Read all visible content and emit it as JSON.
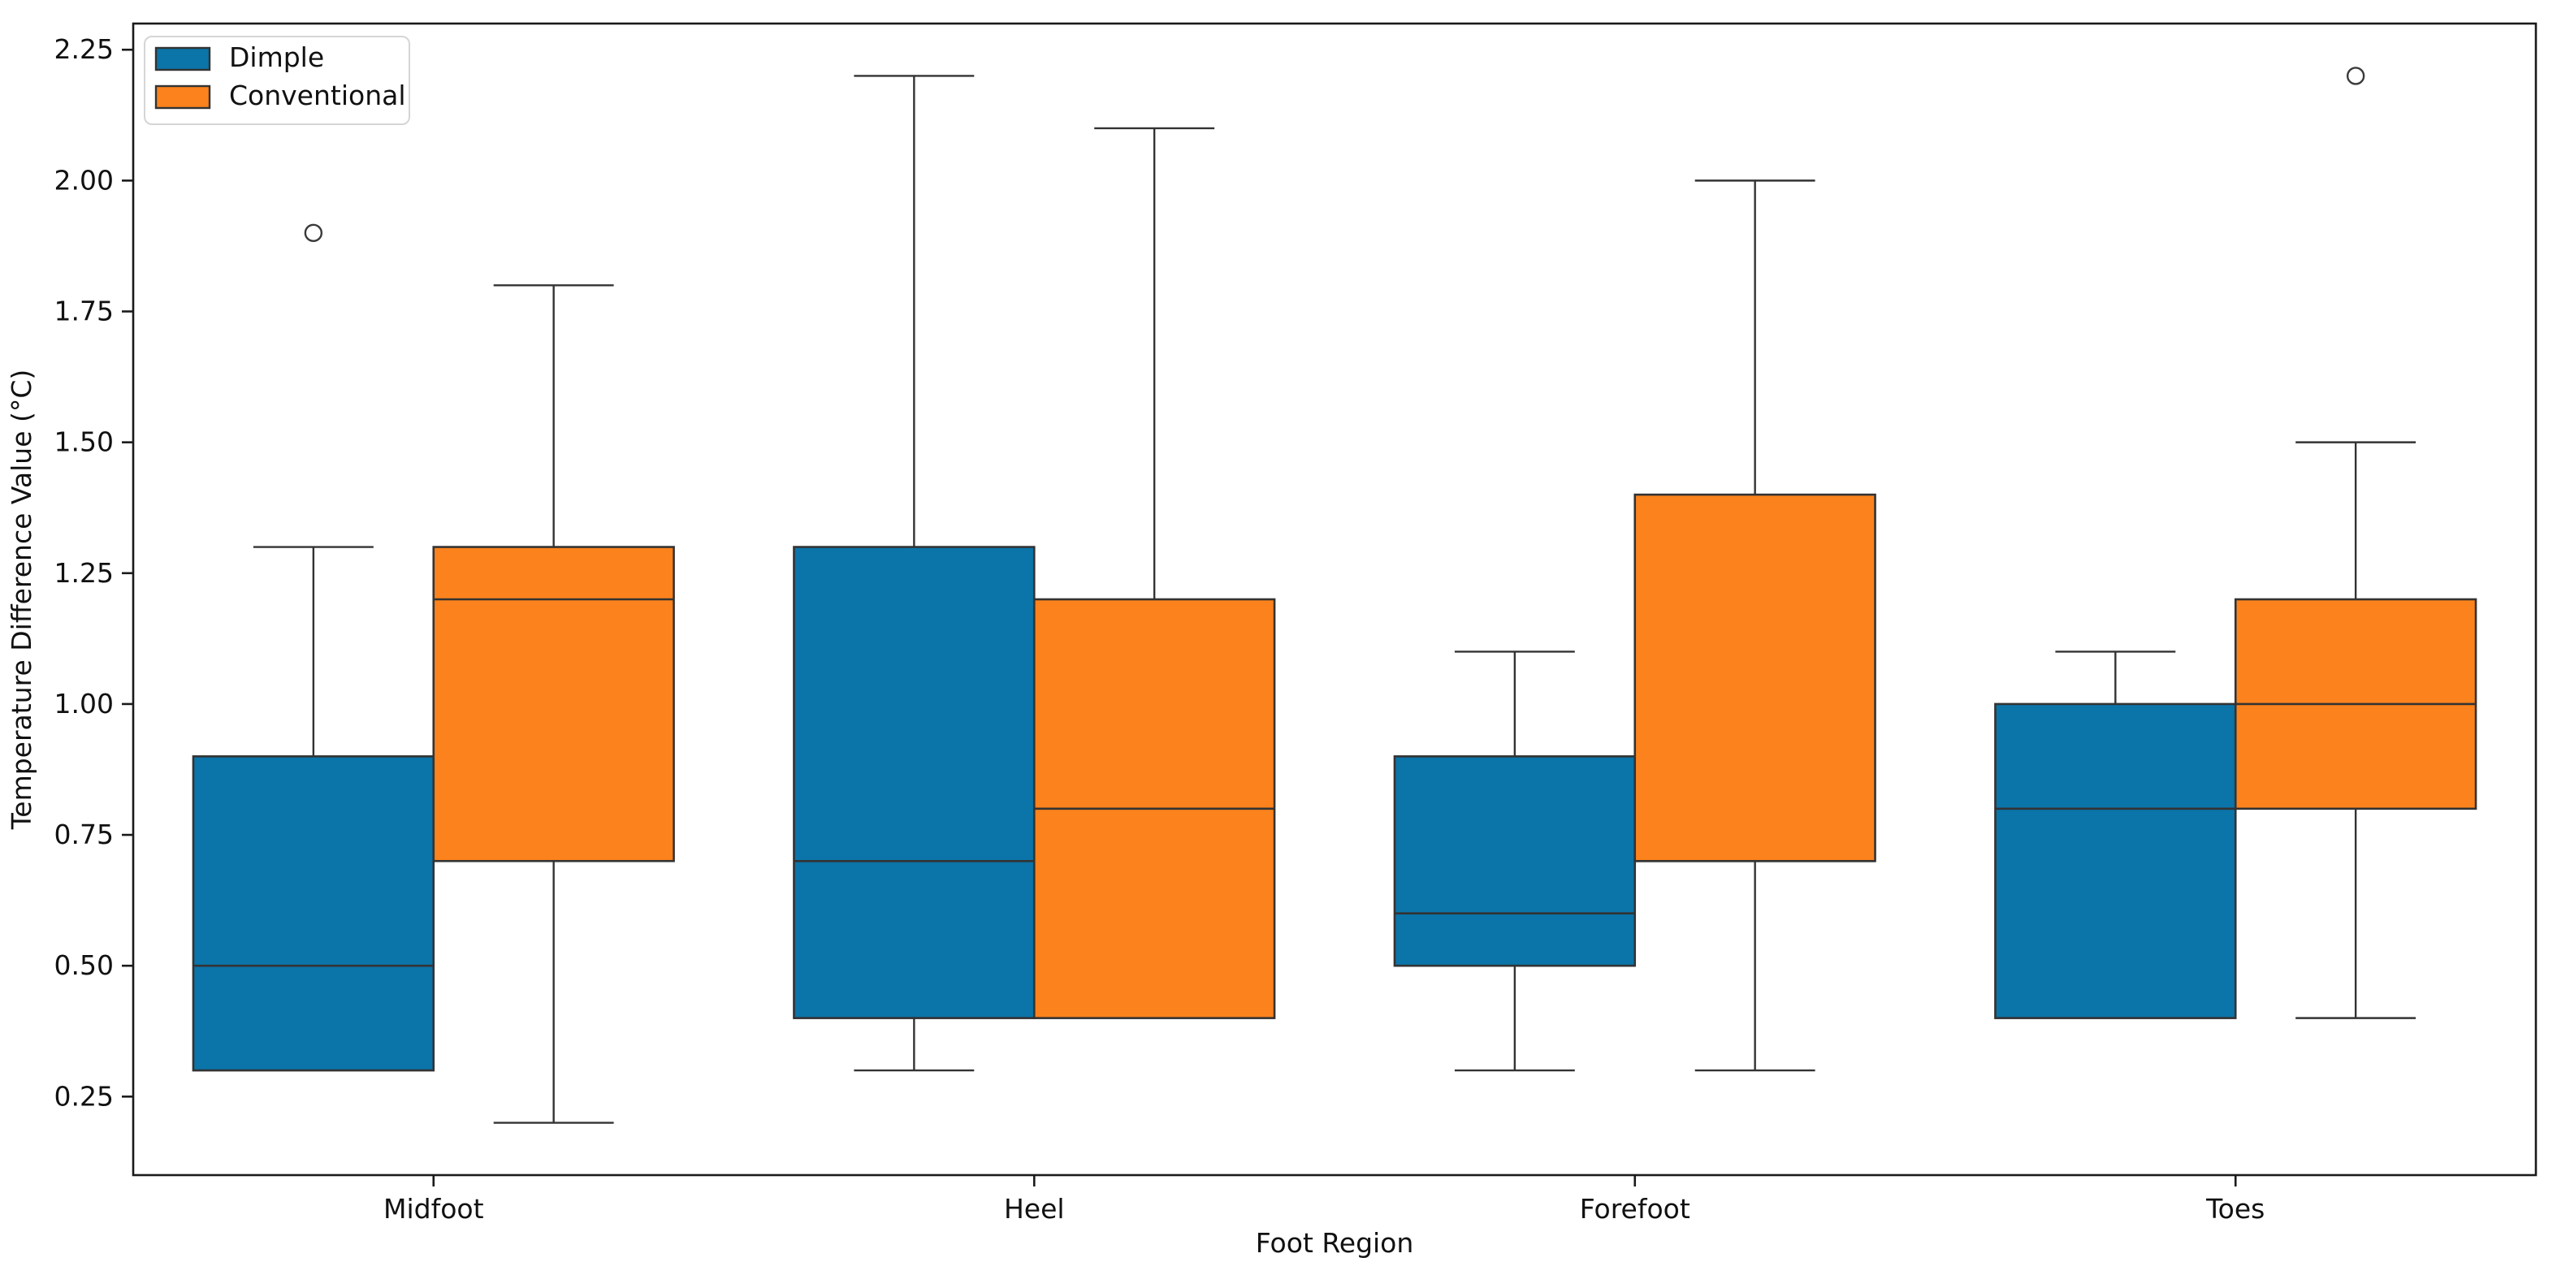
{
  "chart_data": {
    "type": "boxplot",
    "title": "",
    "xlabel": "Foot Region",
    "ylabel": "Temperature Difference Value (°C)",
    "categories": [
      "Midfoot",
      "Heel",
      "Forefoot",
      "Toes"
    ],
    "series": [
      {
        "name": "Dimple",
        "color": "#0b74a8",
        "boxes": [
          {
            "whislo": 0.3,
            "q1": 0.3,
            "med": 0.5,
            "q3": 0.9,
            "whishi": 1.3,
            "fliers": [
              1.9
            ]
          },
          {
            "whislo": 0.3,
            "q1": 0.4,
            "med": 0.7,
            "q3": 1.3,
            "whishi": 2.2,
            "fliers": []
          },
          {
            "whislo": 0.3,
            "q1": 0.5,
            "med": 0.6,
            "q3": 0.9,
            "whishi": 1.1,
            "fliers": []
          },
          {
            "whislo": 0.4,
            "q1": 0.4,
            "med": 0.8,
            "q3": 1.0,
            "whishi": 1.1,
            "fliers": []
          }
        ]
      },
      {
        "name": "Conventional",
        "color": "#fb821c",
        "boxes": [
          {
            "whislo": 0.2,
            "q1": 0.7,
            "med": 1.2,
            "q3": 1.3,
            "whishi": 1.8,
            "fliers": []
          },
          {
            "whislo": 0.4,
            "q1": 0.4,
            "med": 0.8,
            "q3": 1.2,
            "whishi": 2.1,
            "fliers": []
          },
          {
            "whislo": 0.3,
            "q1": 0.7,
            "med": 0.7,
            "q3": 1.4,
            "whishi": 2.0,
            "fliers": []
          },
          {
            "whislo": 0.4,
            "q1": 0.8,
            "med": 1.0,
            "q3": 1.2,
            "whishi": 1.5,
            "fliers": [
              2.2
            ]
          }
        ]
      }
    ],
    "yticks": [
      0.25,
      0.5,
      0.75,
      1.0,
      1.25,
      1.5,
      1.75,
      2.0,
      2.25
    ],
    "ytick_labels": [
      "0.25",
      "0.50",
      "0.75",
      "1.00",
      "1.25",
      "1.50",
      "1.75",
      "2.00",
      "2.25"
    ],
    "ylim": [
      0.1,
      2.3
    ],
    "xlim": [
      -0.5,
      3.5
    ],
    "grid": false,
    "legend_position": "upper-left",
    "edge_color": "#333333"
  }
}
